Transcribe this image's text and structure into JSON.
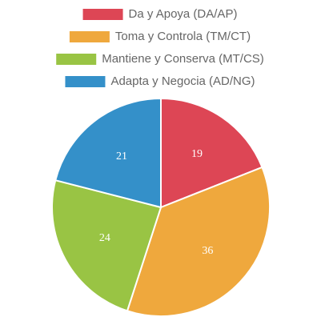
{
  "chart_data": {
    "type": "pie",
    "categories": [
      "Da y Apoya (DA/AP)",
      "Toma y Controla (TM/CT)",
      "Mantiene y Conserva (MT/CS)",
      "Adapta y Negocia (AD/NG)"
    ],
    "values": [
      19,
      36,
      24,
      21
    ],
    "colors": [
      "#dd4655",
      "#efa83d",
      "#99c444",
      "#3490c9"
    ],
    "legend": "top"
  }
}
